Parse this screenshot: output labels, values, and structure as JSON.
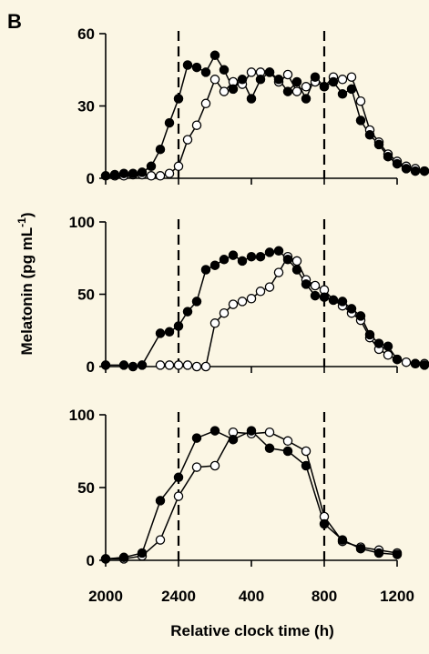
{
  "panel_label": "B",
  "xlabel": "Relative clock time (h)",
  "ylabel": "Melatonin (pg mL",
  "ylabel_sup": "-1",
  "ylabel_close": ")",
  "colors": {
    "background": "#fbf6e4",
    "ink": "#000000",
    "open_fill": "#ffffff"
  },
  "chart_data": [
    {
      "type": "line",
      "x_tick_labels": [
        "2000",
        "2400",
        "400",
        "800",
        "1200"
      ],
      "xlim_hours": [
        20,
        36
      ],
      "ylim": [
        0,
        60
      ],
      "yticks": [
        0,
        30,
        60
      ],
      "dashed_lines_at": [
        "2400",
        "800"
      ],
      "series": [
        {
          "marker": "filled",
          "points": [
            [
              20,
              1
            ],
            [
              20.5,
              1.5
            ],
            [
              21,
              2
            ],
            [
              21.5,
              2
            ],
            [
              22,
              2.5
            ],
            [
              22.5,
              5
            ],
            [
              23,
              12
            ],
            [
              23.5,
              23
            ],
            [
              24,
              33
            ],
            [
              24.5,
              47
            ],
            [
              25,
              46
            ],
            [
              25.5,
              44
            ],
            [
              26,
              51
            ],
            [
              26.5,
              45
            ],
            [
              27,
              37
            ],
            [
              27.5,
              41
            ],
            [
              28,
              33
            ],
            [
              28.5,
              41
            ],
            [
              29,
              44
            ],
            [
              29.5,
              41
            ],
            [
              30,
              36
            ],
            [
              30.5,
              40
            ],
            [
              31,
              33
            ],
            [
              31.5,
              42
            ],
            [
              32,
              38
            ],
            [
              32.5,
              40
            ],
            [
              33,
              35
            ],
            [
              33.5,
              37
            ],
            [
              34,
              24
            ],
            [
              34.5,
              18
            ],
            [
              35,
              14
            ],
            [
              35.5,
              9
            ],
            [
              36,
              6
            ],
            [
              36.5,
              4
            ],
            [
              37,
              3
            ],
            [
              37.5,
              3
            ]
          ]
        },
        {
          "marker": "open",
          "points": [
            [
              20.5,
              1
            ],
            [
              21,
              1
            ],
            [
              21.5,
              1.5
            ],
            [
              22,
              1.5
            ],
            [
              22.5,
              1
            ],
            [
              23,
              1
            ],
            [
              23.5,
              2
            ],
            [
              24,
              5
            ],
            [
              24.5,
              16
            ],
            [
              25,
              22
            ],
            [
              25.5,
              31
            ],
            [
              26,
              41
            ],
            [
              26.5,
              36
            ],
            [
              27,
              40
            ],
            [
              27.5,
              39
            ],
            [
              28,
              44
            ],
            [
              28.5,
              44
            ],
            [
              29,
              44
            ],
            [
              29.5,
              40
            ],
            [
              30,
              43
            ],
            [
              30.5,
              36
            ],
            [
              31,
              38
            ],
            [
              31.5,
              40
            ],
            [
              32,
              38
            ],
            [
              32.5,
              42
            ],
            [
              33,
              41
            ],
            [
              33.5,
              42
            ],
            [
              34,
              32
            ],
            [
              34.5,
              20
            ],
            [
              35,
              15
            ],
            [
              35.5,
              10
            ],
            [
              36,
              7
            ],
            [
              36.5,
              5
            ],
            [
              37,
              4
            ],
            [
              37.5,
              3
            ]
          ]
        }
      ]
    },
    {
      "type": "line",
      "x_tick_labels": [
        "2000",
        "2400",
        "400",
        "800",
        "1200"
      ],
      "xlim_hours": [
        20,
        36
      ],
      "ylim": [
        0,
        100
      ],
      "yticks": [
        0,
        50,
        100
      ],
      "dashed_lines_at": [
        "2400",
        "800"
      ],
      "series": [
        {
          "marker": "filled",
          "points": [
            [
              20,
              1
            ],
            [
              21,
              1
            ],
            [
              21.5,
              0
            ],
            [
              22,
              1
            ],
            [
              23,
              23
            ],
            [
              23.5,
              24
            ],
            [
              24,
              28
            ],
            [
              24.5,
              38
            ],
            [
              25,
              45
            ],
            [
              25.5,
              67
            ],
            [
              26,
              70
            ],
            [
              26.5,
              74
            ],
            [
              27,
              77
            ],
            [
              27.5,
              73
            ],
            [
              28,
              76
            ],
            [
              28.5,
              76
            ],
            [
              29,
              79
            ],
            [
              29.5,
              80
            ],
            [
              30,
              74
            ],
            [
              30.5,
              67
            ],
            [
              31,
              57
            ],
            [
              31.5,
              49
            ],
            [
              32,
              48
            ],
            [
              32.5,
              46
            ],
            [
              33,
              45
            ],
            [
              33.5,
              40
            ],
            [
              34,
              35
            ],
            [
              34.5,
              22
            ],
            [
              35,
              16
            ],
            [
              35.5,
              14
            ],
            [
              36,
              5
            ],
            [
              37,
              2
            ],
            [
              37.5,
              1
            ],
            [
              38,
              1
            ]
          ]
        },
        {
          "marker": "open",
          "points": [
            [
              23,
              1
            ],
            [
              23.5,
              1
            ],
            [
              24,
              1
            ],
            [
              24.5,
              1
            ],
            [
              25,
              0
            ],
            [
              25.5,
              0
            ],
            [
              26,
              30
            ],
            [
              26.5,
              37
            ],
            [
              27,
              43
            ],
            [
              27.5,
              45
            ],
            [
              28,
              47
            ],
            [
              28.5,
              52
            ],
            [
              29,
              55
            ],
            [
              29.5,
              65
            ],
            [
              30,
              76
            ],
            [
              30.5,
              73
            ],
            [
              31,
              60
            ],
            [
              31.5,
              56
            ],
            [
              32,
              53
            ],
            [
              32.5,
              46
            ],
            [
              33,
              42
            ],
            [
              33.5,
              37
            ],
            [
              34,
              32
            ],
            [
              34.5,
              20
            ],
            [
              35,
              12
            ],
            [
              35.5,
              8
            ],
            [
              36,
              5
            ],
            [
              36.5,
              3
            ],
            [
              37,
              2
            ],
            [
              37.5,
              2
            ]
          ]
        }
      ]
    },
    {
      "type": "line",
      "x_tick_labels": [
        "2000",
        "2400",
        "400",
        "800",
        "1200"
      ],
      "xlim_hours": [
        20,
        36
      ],
      "ylim": [
        0,
        100
      ],
      "yticks": [
        0,
        50,
        100
      ],
      "dashed_lines_at": [
        "2400",
        "800"
      ],
      "series": [
        {
          "marker": "filled",
          "points": [
            [
              20,
              1
            ],
            [
              21,
              2
            ],
            [
              22,
              5
            ],
            [
              23,
              41
            ],
            [
              24,
              57
            ],
            [
              25,
              84
            ],
            [
              26,
              89
            ],
            [
              27,
              83
            ],
            [
              28,
              89
            ],
            [
              29,
              77
            ],
            [
              30,
              75
            ],
            [
              31,
              65
            ],
            [
              32,
              25
            ],
            [
              33,
              14
            ],
            [
              34,
              8
            ],
            [
              35,
              5
            ],
            [
              36,
              4
            ]
          ]
        },
        {
          "marker": "open",
          "points": [
            [
              20,
              1
            ],
            [
              21,
              1
            ],
            [
              22,
              3
            ],
            [
              23,
              14
            ],
            [
              24,
              44
            ],
            [
              25,
              64
            ],
            [
              26,
              65
            ],
            [
              27,
              88
            ],
            [
              28,
              87
            ],
            [
              29,
              88
            ],
            [
              30,
              82
            ],
            [
              31,
              75
            ],
            [
              32,
              30
            ],
            [
              33,
              13
            ],
            [
              34,
              9
            ],
            [
              35,
              7
            ],
            [
              36,
              5
            ]
          ]
        }
      ]
    }
  ]
}
